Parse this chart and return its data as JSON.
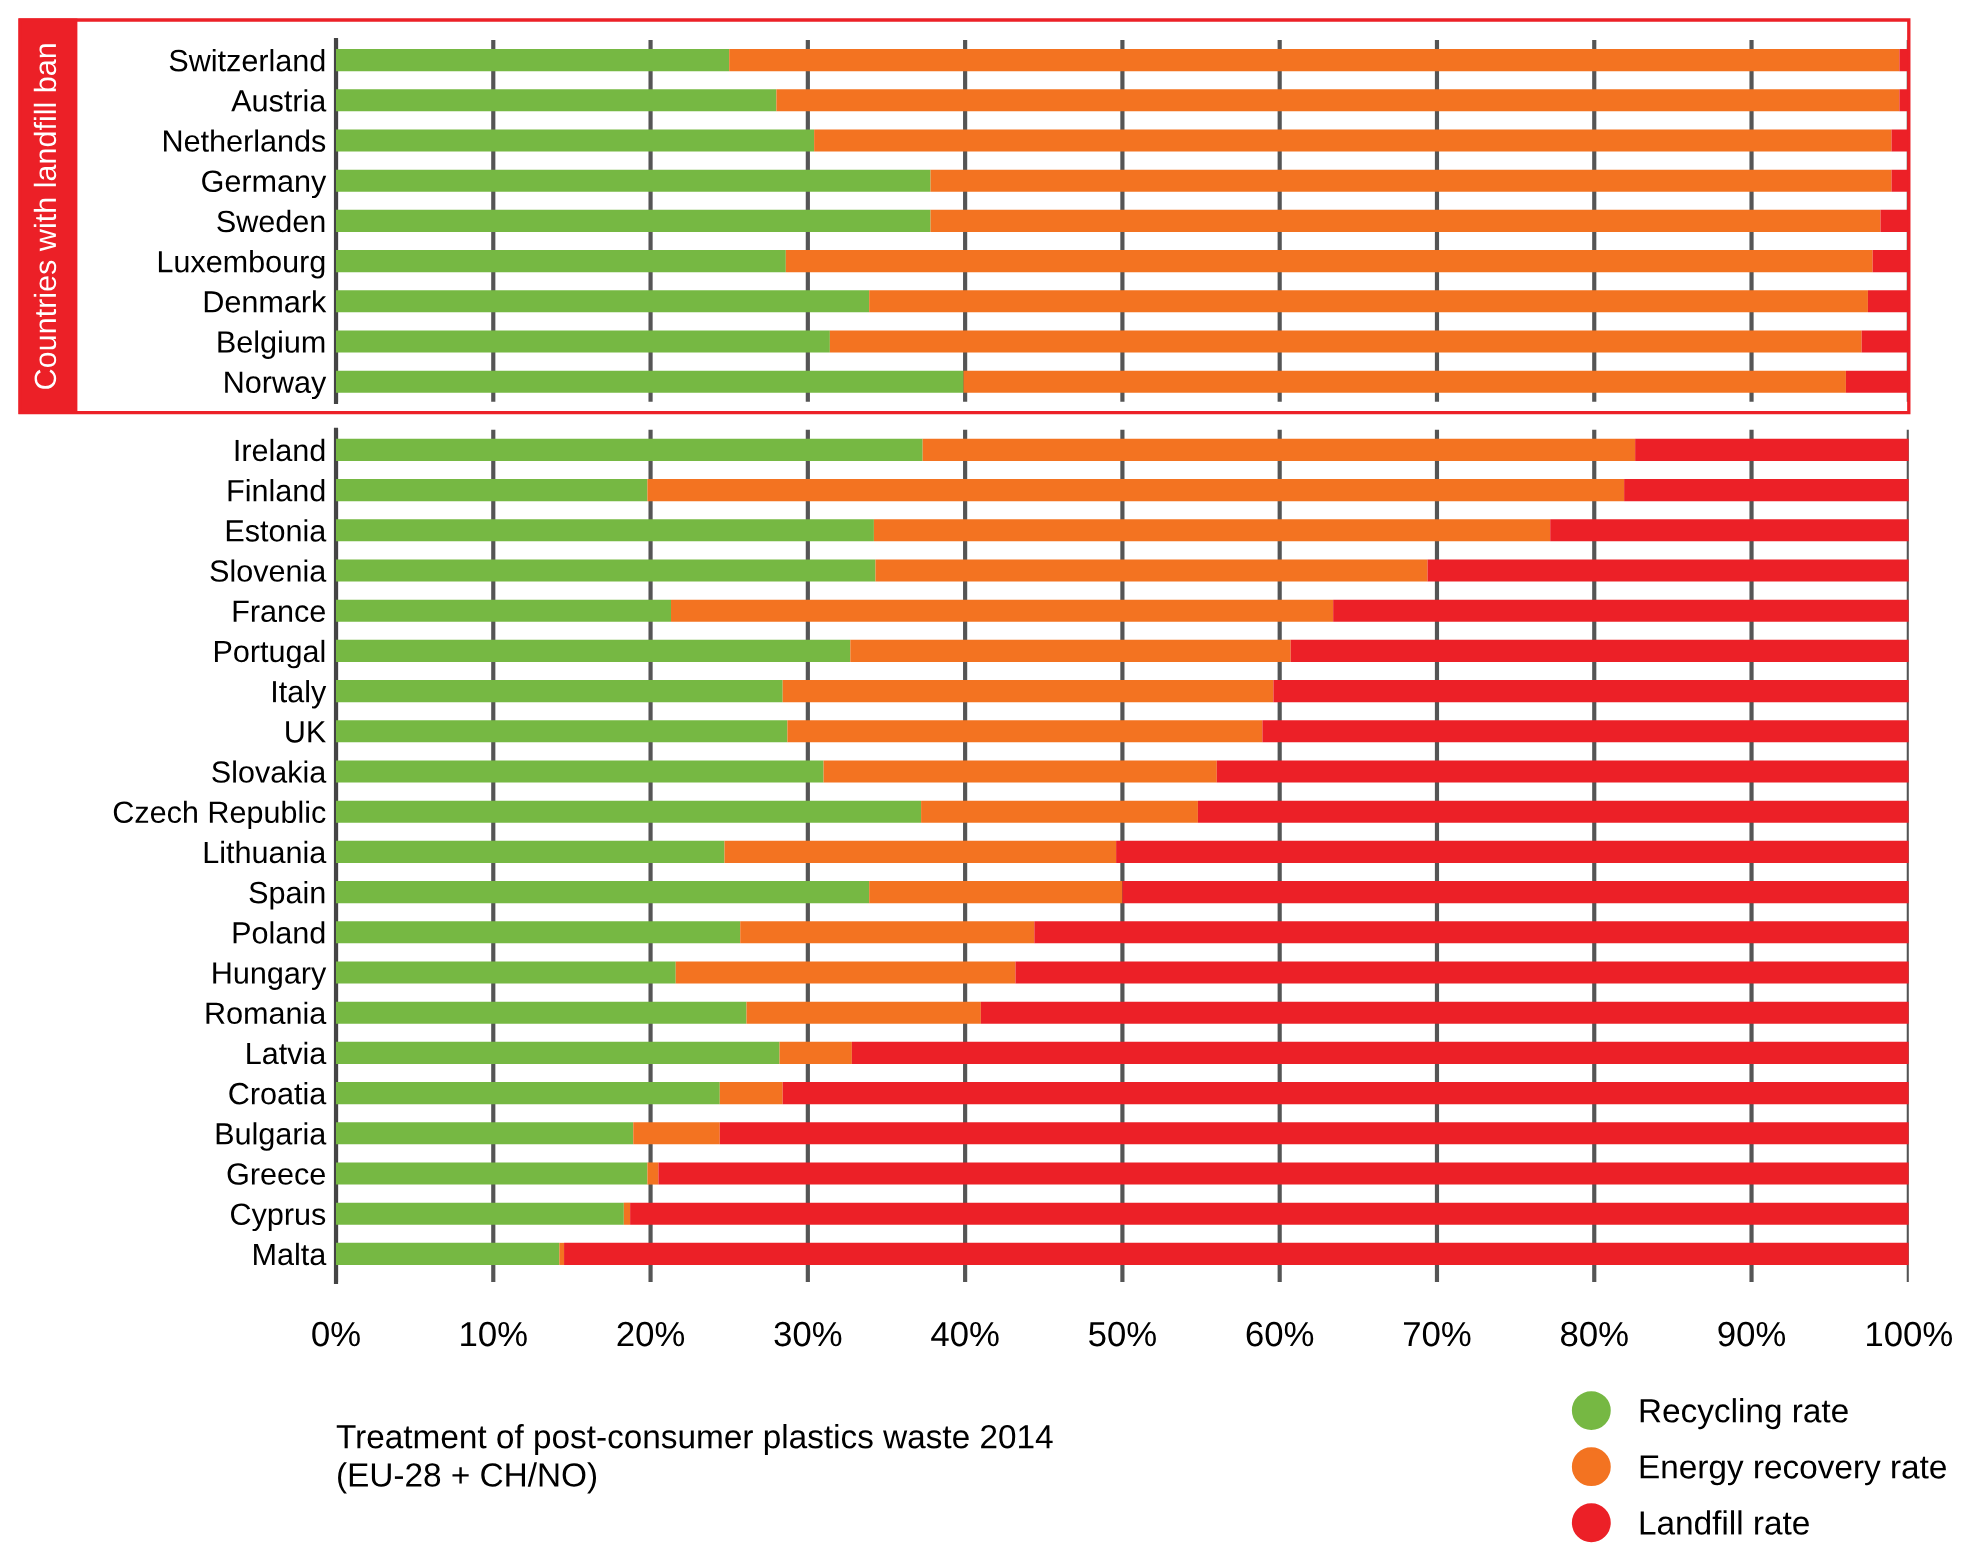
{
  "chart_data": [
    {
      "type": "bar",
      "orientation": "horizontal",
      "stacked": true,
      "categories": [
        "Switzerland",
        "Austria",
        "Netherlands",
        "Germany",
        "Sweden",
        "Luxembourg",
        "Denmark",
        "Belgium",
        "Norway"
      ],
      "series": [
        {
          "color": "#76b843",
          "values": [
            25,
            28,
            30.4,
            37.8,
            37.8,
            28.6,
            33.9,
            31.4,
            39.9
          ]
        },
        {
          "color": "#f37321",
          "values": [
            74.4,
            71.4,
            68.5,
            61.1,
            60.4,
            69.1,
            63.5,
            65.6,
            56.1
          ]
        },
        {
          "color": "#ec2027",
          "values": [
            0.6,
            0.6,
            1.1,
            1.1,
            1.8,
            2.3,
            2.6,
            3.0,
            4.0
          ]
        }
      ],
      "xlim": [
        0,
        100
      ],
      "xticks": [
        {
          "value": 0,
          "label": null
        },
        {
          "value": 10,
          "label": null
        },
        {
          "value": 20,
          "label": null
        },
        {
          "value": 30,
          "label": null
        },
        {
          "value": 40,
          "label": null
        },
        {
          "value": 50,
          "label": null
        },
        {
          "value": 60,
          "label": null
        },
        {
          "value": 70,
          "label": null
        },
        {
          "value": 80,
          "label": null
        },
        {
          "value": 90,
          "label": null
        },
        {
          "value": 100,
          "label": null
        }
      ],
      "tick_labels": "y",
      "annotations": [
        "Countries with landfill ban"
      ],
      "grid": "x"
    },
    {
      "type": "bar",
      "orientation": "horizontal",
      "stacked": true,
      "title": "Treatment of post-consumer plastics waste 2014\n(EU-28 + CH/NO)",
      "categories": [
        "Ireland",
        "Finland",
        "Estonia",
        "Slovenia",
        "France",
        "Portugal",
        "Italy",
        "UK",
        "Slovakia",
        "Czech Republic",
        "Lithuania",
        "Spain",
        "Poland",
        "Hungary",
        "Romania",
        "Latvia",
        "Croatia",
        "Bulgaria",
        "Greece",
        "Cyprus",
        "Malta"
      ],
      "series": [
        {
          "name": "Recycling rate",
          "color": "#76b843",
          "values": [
            37.3,
            19.8,
            34.2,
            34.3,
            21.3,
            32.7,
            28.4,
            28.7,
            31.0,
            37.2,
            24.7,
            33.9,
            25.7,
            21.6,
            26.1,
            28.2,
            24.4,
            18.9,
            19.8,
            18.3,
            14.2
          ]
        },
        {
          "name": "Energy recovery rate",
          "color": "#f37321",
          "values": [
            45.3,
            62.1,
            43.0,
            35.1,
            42.1,
            28.0,
            31.2,
            30.2,
            25.0,
            17.6,
            24.9,
            16.1,
            18.7,
            21.6,
            14.9,
            4.6,
            4.0,
            5.5,
            0.7,
            0.4,
            0.3
          ]
        },
        {
          "name": "Landfill rate",
          "color": "#ec2027",
          "values": [
            17.4,
            18.1,
            22.8,
            30.6,
            36.6,
            39.3,
            40.4,
            41.1,
            44.0,
            45.2,
            50.4,
            50.0,
            55.6,
            56.8,
            59.0,
            67.2,
            71.6,
            75.6,
            79.5,
            81.3,
            85.5
          ]
        }
      ],
      "xlim": [
        0,
        100
      ],
      "xticks": [
        {
          "value": 0,
          "label": "0%"
        },
        {
          "value": 10,
          "label": "10%"
        },
        {
          "value": 20,
          "label": "20%"
        },
        {
          "value": 30,
          "label": "30%"
        },
        {
          "value": 40,
          "label": "40%"
        },
        {
          "value": 50,
          "label": "50%"
        },
        {
          "value": 60,
          "label": "60%"
        },
        {
          "value": 70,
          "label": "70%"
        },
        {
          "value": 80,
          "label": "80%"
        },
        {
          "value": 90,
          "label": "90%"
        },
        {
          "value": 100,
          "label": "100%"
        }
      ],
      "grid": "x",
      "legend": "bottom right"
    }
  ]
}
